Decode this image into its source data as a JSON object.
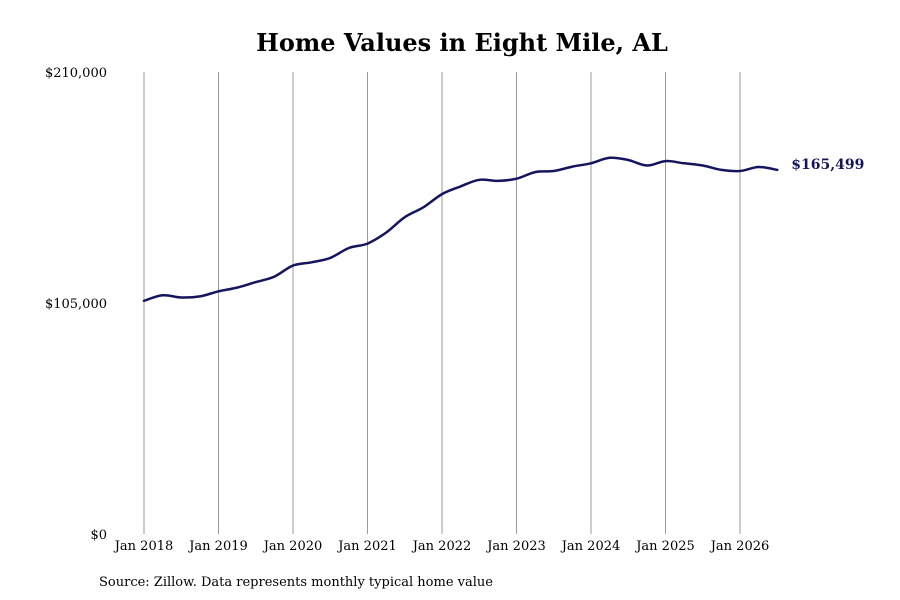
{
  "chart_data": {
    "type": "line",
    "title": "Home Values in Eight Mile, AL",
    "source": "Source: Zillow. Data represents monthly typical home value",
    "y_ticks": [
      {
        "value": 0,
        "label": "$0"
      },
      {
        "value": 105000,
        "label": "$105,000"
      },
      {
        "value": 210000,
        "label": "$210,000"
      }
    ],
    "ylim": [
      0,
      210000
    ],
    "x_ticks": [
      {
        "year": 2018,
        "label": "Jan 2018"
      },
      {
        "year": 2019,
        "label": "Jan 2019"
      },
      {
        "year": 2020,
        "label": "Jan 2020"
      },
      {
        "year": 2021,
        "label": "Jan 2021"
      },
      {
        "year": 2022,
        "label": "Jan 2022"
      },
      {
        "year": 2023,
        "label": "Jan 2023"
      },
      {
        "year": 2024,
        "label": "Jan 2024"
      },
      {
        "year": 2025,
        "label": "Jan 2025"
      },
      {
        "year": 2026,
        "label": "Jan 2026"
      }
    ],
    "grid": "vertical",
    "line_color": "#15155e",
    "end_label": "$165,499",
    "series": [
      {
        "points": [
          {
            "x": "2018-01",
            "y": 106000
          },
          {
            "x": "2018-04",
            "y": 108500
          },
          {
            "x": "2018-07",
            "y": 107500
          },
          {
            "x": "2018-10",
            "y": 108000
          },
          {
            "x": "2019-01",
            "y": 110300
          },
          {
            "x": "2019-04",
            "y": 112000
          },
          {
            "x": "2019-07",
            "y": 114500
          },
          {
            "x": "2019-10",
            "y": 117000
          },
          {
            "x": "2020-01",
            "y": 122000
          },
          {
            "x": "2020-04",
            "y": 123500
          },
          {
            "x": "2020-07",
            "y": 125500
          },
          {
            "x": "2020-10",
            "y": 130000
          },
          {
            "x": "2021-01",
            "y": 132000
          },
          {
            "x": "2021-04",
            "y": 137000
          },
          {
            "x": "2021-07",
            "y": 144000
          },
          {
            "x": "2021-10",
            "y": 148500
          },
          {
            "x": "2022-01",
            "y": 154500
          },
          {
            "x": "2022-04",
            "y": 158000
          },
          {
            "x": "2022-07",
            "y": 161000
          },
          {
            "x": "2022-10",
            "y": 160500
          },
          {
            "x": "2023-01",
            "y": 161500
          },
          {
            "x": "2023-04",
            "y": 164500
          },
          {
            "x": "2023-07",
            "y": 165000
          },
          {
            "x": "2023-10",
            "y": 167000
          },
          {
            "x": "2024-01",
            "y": 168500
          },
          {
            "x": "2024-04",
            "y": 171000
          },
          {
            "x": "2024-07",
            "y": 170000
          },
          {
            "x": "2024-10",
            "y": 167500
          },
          {
            "x": "2025-01",
            "y": 169500
          },
          {
            "x": "2025-04",
            "y": 168500
          },
          {
            "x": "2025-07",
            "y": 167500
          },
          {
            "x": "2025-10",
            "y": 165500
          },
          {
            "x": "2026-01",
            "y": 165000
          },
          {
            "x": "2026-04",
            "y": 166800
          },
          {
            "x": "2026-07",
            "y": 165499
          }
        ]
      }
    ]
  }
}
